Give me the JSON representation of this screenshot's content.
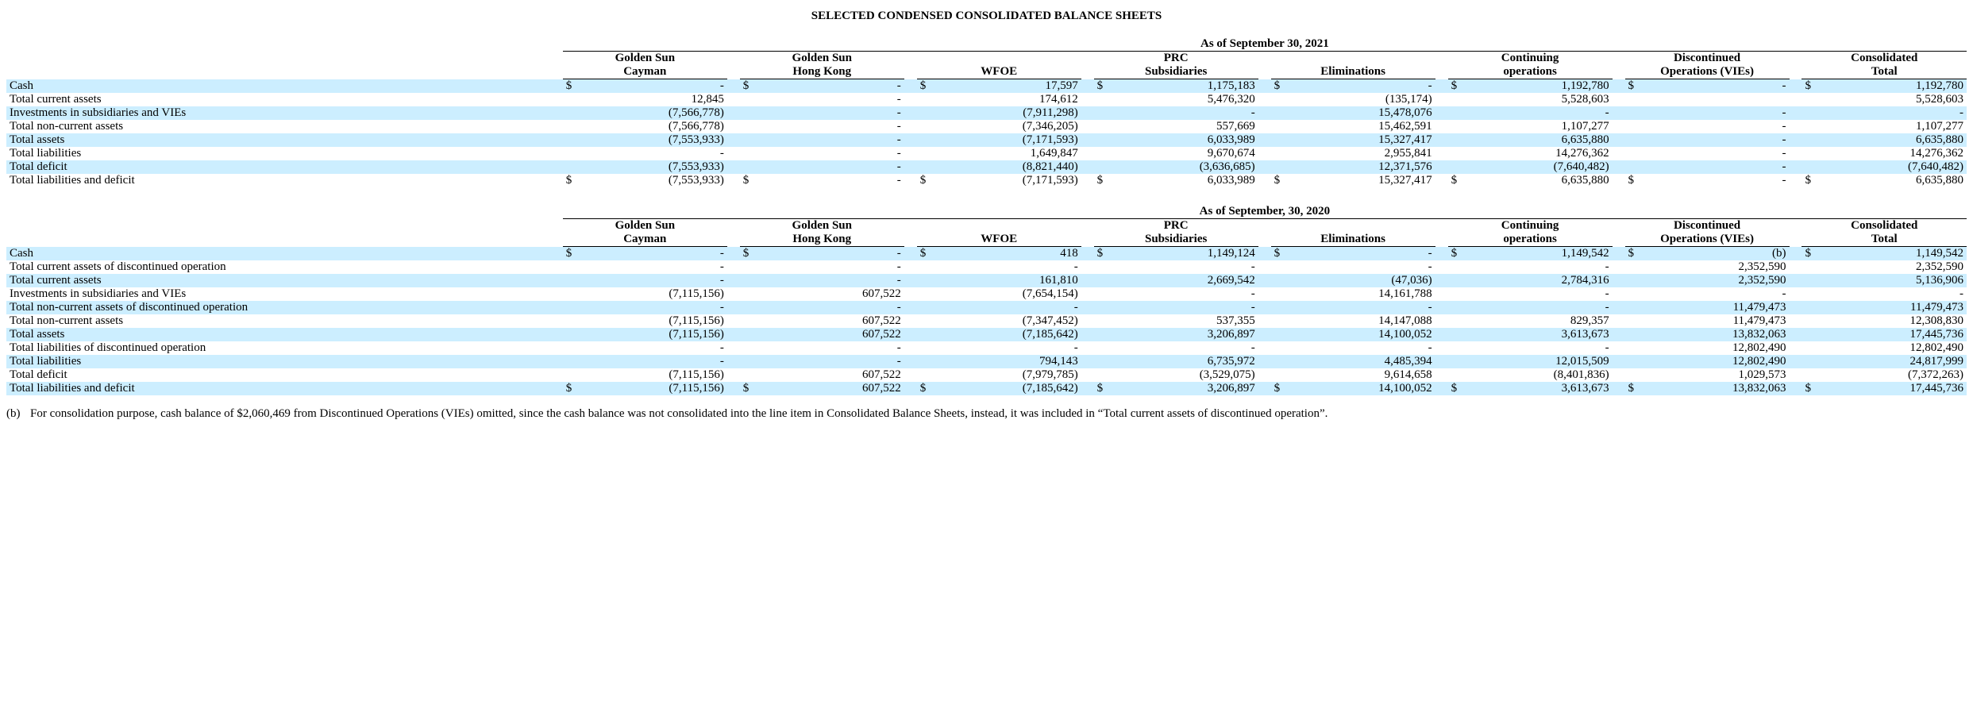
{
  "title": "SELECTED CONDENSED CONSOLIDATED BALANCE SHEETS",
  "columns": [
    {
      "line1": "Golden Sun",
      "line2": "Cayman"
    },
    {
      "line1": "Golden Sun",
      "line2": "Hong Kong"
    },
    {
      "line1": "",
      "line2": "WFOE"
    },
    {
      "line1": "PRC",
      "line2": "Subsidiaries"
    },
    {
      "line1": "",
      "line2": "Eliminations"
    },
    {
      "line1": "Continuing",
      "line2": "operations"
    },
    {
      "line1": "Discontinued",
      "line2": "Operations (VIEs)"
    },
    {
      "line1": "Consolidated",
      "line2": "Total"
    }
  ],
  "tables": [
    {
      "super": "As of September 30, 2021",
      "rows": [
        {
          "band": true,
          "label": "Cash",
          "curr": true,
          "v": [
            "-",
            "-",
            "17,597",
            "1,175,183",
            "-",
            "1,192,780",
            "-",
            "1,192,780"
          ]
        },
        {
          "band": false,
          "label": "Total current assets",
          "curr": false,
          "v": [
            "12,845",
            "-",
            "174,612",
            "5,476,320",
            "(135,174)",
            "5,528,603",
            "",
            "5,528,603"
          ]
        },
        {
          "band": true,
          "label": "Investments in subsidiaries and VIEs",
          "curr": false,
          "v": [
            "(7,566,778)",
            "-",
            "(7,911,298)",
            "-",
            "15,478,076",
            "-",
            "-",
            "-"
          ]
        },
        {
          "band": false,
          "label": "Total non-current assets",
          "curr": false,
          "v": [
            "(7,566,778)",
            "-",
            "(7,346,205)",
            "557,669",
            "15,462,591",
            "1,107,277",
            "-",
            "1,107,277"
          ]
        },
        {
          "band": true,
          "label": "Total assets",
          "curr": false,
          "v": [
            "(7,553,933)",
            "-",
            "(7,171,593)",
            "6,033,989",
            "15,327,417",
            "6,635,880",
            "-",
            "6,635,880"
          ]
        },
        {
          "band": false,
          "label": "Total liabilities",
          "curr": false,
          "v": [
            "-",
            "-",
            "1,649,847",
            "9,670,674",
            "2,955,841",
            "14,276,362",
            "-",
            "14,276,362"
          ]
        },
        {
          "band": true,
          "label": "Total deficit",
          "curr": false,
          "v": [
            "(7,553,933)",
            "-",
            "(8,821,440)",
            "(3,636,685)",
            "12,371,576",
            "(7,640,482)",
            "-",
            "(7,640,482)"
          ]
        },
        {
          "band": false,
          "label": "Total liabilities and deficit",
          "curr": true,
          "v": [
            "(7,553,933)",
            "-",
            "(7,171,593)",
            "6,033,989",
            "15,327,417",
            "6,635,880",
            "-",
            "6,635,880"
          ]
        }
      ]
    },
    {
      "super": "As of September, 30, 2020",
      "rows": [
        {
          "band": true,
          "label": "Cash",
          "curr": true,
          "v": [
            "-",
            "-",
            "418",
            "1,149,124",
            "-",
            "1,149,542",
            "(b)",
            "1,149,542"
          ]
        },
        {
          "band": false,
          "label": "Total current assets of discontinued operation",
          "curr": false,
          "v": [
            "-",
            "-",
            "-",
            "-",
            "-",
            "-",
            "2,352,590",
            "2,352,590"
          ]
        },
        {
          "band": true,
          "label": "Total current assets",
          "curr": false,
          "v": [
            "-",
            "-",
            "161,810",
            "2,669,542",
            "(47,036)",
            "2,784,316",
            "2,352,590",
            "5,136,906"
          ]
        },
        {
          "band": false,
          "label": "Investments in subsidiaries and VIEs",
          "curr": false,
          "v": [
            "(7,115,156)",
            "607,522",
            "(7,654,154)",
            "-",
            "14,161,788",
            "-",
            "-",
            "-"
          ]
        },
        {
          "band": true,
          "label": "Total non-current assets of discontinued operation",
          "curr": false,
          "v": [
            "-",
            "-",
            "-",
            "-",
            "-",
            "-",
            "11,479,473",
            "11,479,473"
          ]
        },
        {
          "band": false,
          "label": "Total non-current assets",
          "curr": false,
          "v": [
            "(7,115,156)",
            "607,522",
            "(7,347,452)",
            "537,355",
            "14,147,088",
            "829,357",
            "11,479,473",
            "12,308,830"
          ]
        },
        {
          "band": true,
          "label": "Total assets",
          "curr": false,
          "v": [
            "(7,115,156)",
            "607,522",
            "(7,185,642)",
            "3,206,897",
            "14,100,052",
            "3,613,673",
            "13,832,063",
            "17,445,736"
          ]
        },
        {
          "band": false,
          "label": "Total liabilities of discontinued operation",
          "curr": false,
          "v": [
            "-",
            "-",
            "-",
            "-",
            "-",
            "-",
            "12,802,490",
            "12,802,490"
          ]
        },
        {
          "band": true,
          "label": "Total liabilities",
          "curr": false,
          "v": [
            "-",
            "-",
            "794,143",
            "6,735,972",
            "4,485,394",
            "12,015,509",
            "12,802,490",
            "24,817,999"
          ]
        },
        {
          "band": false,
          "label": "Total deficit",
          "curr": false,
          "v": [
            "(7,115,156)",
            "607,522",
            "(7,979,785)",
            "(3,529,075)",
            "9,614,658",
            "(8,401,836)",
            "1,029,573",
            "(7,372,263)"
          ]
        },
        {
          "band": true,
          "label": "Total liabilities and deficit",
          "curr": true,
          "v": [
            "(7,115,156)",
            "607,522",
            "(7,185,642)",
            "3,206,897",
            "14,100,052",
            "3,613,673",
            "13,832,063",
            "17,445,736"
          ]
        }
      ]
    }
  ],
  "footnote": {
    "mark": "(b)",
    "text": "For consolidation purpose, cash balance of $2,060,469 from Discontinued Operations (VIEs) omitted, since the cash balance was not consolidated into the line item in Consolidated Balance Sheets, instead, it was included in “Total current assets of discontinued operation”."
  },
  "currency": "$",
  "colors": {
    "band": "#cceeff",
    "border": "#000000",
    "page_bg": "#ffffff"
  }
}
